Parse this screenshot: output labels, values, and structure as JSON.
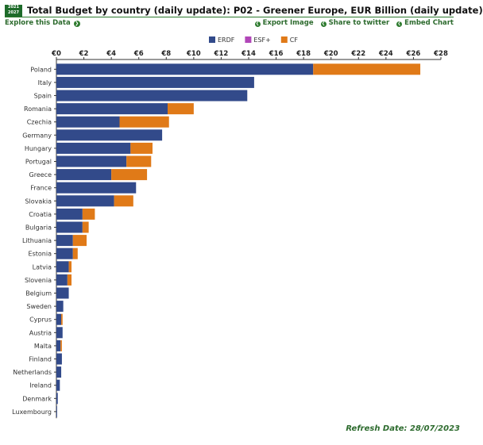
{
  "header": {
    "badge_line1": "2021",
    "badge_line2": "2027",
    "title": "Total Budget by country (daily update): P02 - Greener Europe, EUR Billion (daily update)"
  },
  "toolbar": {
    "explore_label": "Explore this Data",
    "export_label": "Export Image",
    "share_label": "Share to twitter",
    "embed_label": "Embed Chart"
  },
  "footer": {
    "refresh_label": "Refresh Date: 28/07/2023"
  },
  "colors": {
    "ERDF": "#324a8a",
    "ESF+": "#b146b8",
    "CF": "#e07a18",
    "accent": "#2d7a2e"
  },
  "chart_data": {
    "type": "bar",
    "orientation": "horizontal",
    "stacked": true,
    "title": "Total Budget by country (daily update): P02 - Greener Europe, EUR Billion (daily update)",
    "xlim": [
      0,
      28
    ],
    "x_ticks": [
      "€0",
      "€2",
      "€4",
      "€6",
      "€8",
      "€10",
      "€12",
      "€14",
      "€16",
      "€18",
      "€20",
      "€22",
      "€24",
      "€26",
      "€28"
    ],
    "legend_position": "top-center",
    "grid": false,
    "categories": [
      "Poland",
      "Italy",
      "Spain",
      "Romania",
      "Czechia",
      "Germany",
      "Hungary",
      "Portugal",
      "Greece",
      "France",
      "Slovakia",
      "Croatia",
      "Bulgaria",
      "Lithuania",
      "Estonia",
      "Latvia",
      "Slovenia",
      "Belgium",
      "Sweden",
      "Cyprus",
      "Austria",
      "Malta",
      "Finland",
      "Netherlands",
      "Ireland",
      "Denmark",
      "Luxembourg"
    ],
    "series": [
      {
        "name": "ERDF",
        "values": [
          18.7,
          14.4,
          13.9,
          8.1,
          4.6,
          7.7,
          5.4,
          5.1,
          4.0,
          5.8,
          4.2,
          1.9,
          1.9,
          1.2,
          1.2,
          0.9,
          0.8,
          0.9,
          0.5,
          0.35,
          0.45,
          0.3,
          0.4,
          0.35,
          0.25,
          0.1,
          0.05
        ]
      },
      {
        "name": "ESF+",
        "values": [
          0,
          0,
          0,
          0,
          0,
          0,
          0,
          0,
          0,
          0,
          0,
          0,
          0,
          0,
          0,
          0,
          0,
          0,
          0,
          0,
          0,
          0,
          0,
          0,
          0,
          0,
          0
        ]
      },
      {
        "name": "CF",
        "values": [
          7.8,
          0,
          0,
          1.9,
          3.6,
          0,
          1.6,
          1.8,
          2.6,
          0,
          1.4,
          0.9,
          0.45,
          1.0,
          0.35,
          0.2,
          0.3,
          0,
          0,
          0.1,
          0,
          0.1,
          0,
          0,
          0,
          0,
          0
        ]
      }
    ]
  }
}
